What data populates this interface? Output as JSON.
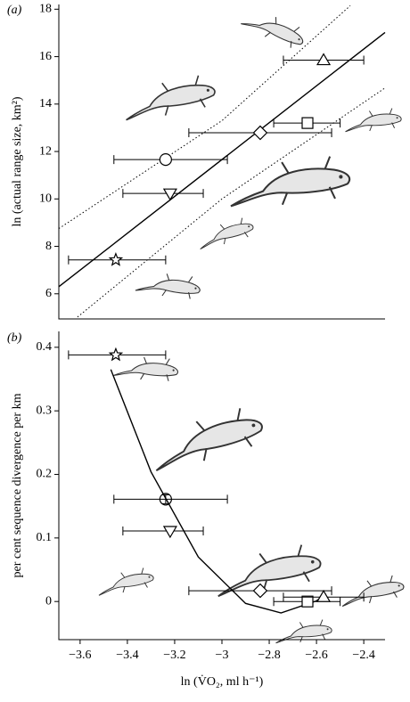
{
  "chart_data": [
    {
      "type": "scatter",
      "panel": "(a)",
      "ylabel": "ln (actual range size, km²)",
      "xlim": [
        -3.69,
        -2.31
      ],
      "ylim": [
        4.94,
        18.2
      ],
      "yticks": [
        6,
        8,
        10,
        12,
        14,
        16,
        18
      ],
      "markers": [
        "star",
        "triangle-down",
        "circle",
        "diamond",
        "square",
        "triangle"
      ],
      "x": [
        -3.449,
        -3.219,
        -3.238,
        -2.838,
        -2.638,
        -2.57
      ],
      "y": [
        7.43,
        10.23,
        11.66,
        12.79,
        13.2,
        15.85
      ],
      "xerr_low": [
        -3.649,
        -3.419,
        -3.457,
        -3.14,
        -2.781,
        -2.74
      ],
      "xerr_high": [
        -3.238,
        -3.079,
        -2.977,
        -2.536,
        -2.5,
        -2.4
      ],
      "lines": [
        {
          "style": "solid",
          "x": [
            -3.69,
            -2.31
          ],
          "y": [
            6.3,
            17.02
          ]
        },
        {
          "style": "dotted",
          "x": [
            -3.69,
            -3.0,
            -2.457
          ],
          "y": [
            8.75,
            13.3,
            18.15
          ]
        },
        {
          "style": "dotted",
          "x": [
            -3.611,
            -3.0,
            -2.31
          ],
          "y": [
            5.02,
            10.0,
            14.68
          ]
        }
      ]
    },
    {
      "type": "scatter",
      "panel": "(b)",
      "ylabel": "per cent sequence divergence per km",
      "xlabel": "ln (V̇O₂, ml h⁻¹)",
      "xlim": [
        -3.69,
        -2.31
      ],
      "ylim": [
        -0.06,
        0.425
      ],
      "xticks": [
        -3.6,
        -3.4,
        -3.2,
        -3.0,
        -2.8,
        -2.6,
        -2.4
      ],
      "yticks": [
        0,
        0.1,
        0.2,
        0.3,
        0.4
      ],
      "markers": [
        "star",
        "triangle-down",
        "circle",
        "diamond",
        "square",
        "triangle"
      ],
      "x": [
        -3.449,
        -3.219,
        -3.238,
        -2.838,
        -2.638,
        -2.57
      ],
      "y": [
        0.388,
        0.111,
        0.161,
        0.017,
        0.0,
        0.007
      ],
      "xerr_low": [
        -3.649,
        -3.419,
        -3.457,
        -3.14,
        -2.781,
        -2.74
      ],
      "xerr_high": [
        -3.238,
        -3.079,
        -2.977,
        -2.536,
        -2.5,
        -2.4
      ],
      "yerr": [
        null,
        null,
        0.007,
        null,
        null,
        null
      ],
      "lines": [
        {
          "style": "solid",
          "x": [
            -3.47,
            -3.3,
            -3.1,
            -2.9,
            -2.75,
            -2.6,
            -2.56
          ],
          "y": [
            0.365,
            0.204,
            0.07,
            -0.003,
            -0.018,
            0.001,
            0.012
          ]
        }
      ]
    }
  ]
}
